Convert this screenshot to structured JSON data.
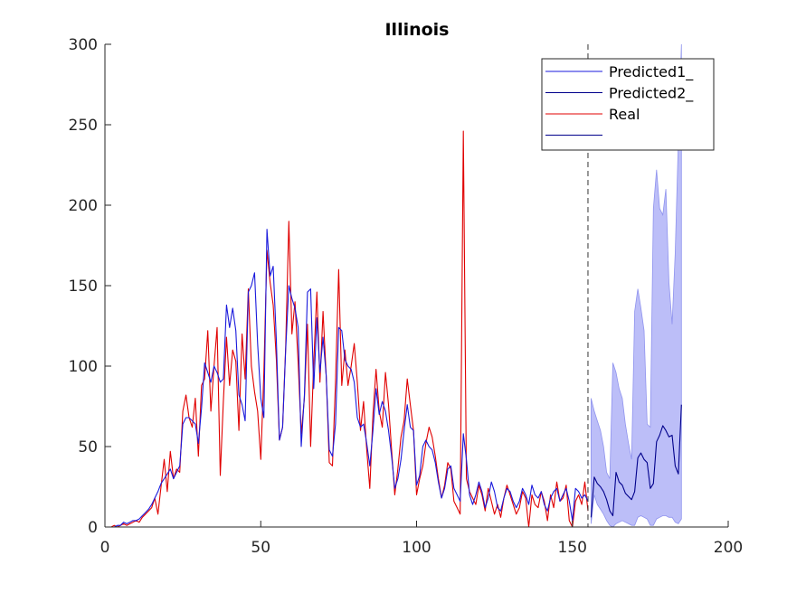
{
  "chart_data": {
    "type": "line",
    "title": "Illinois",
    "xlabel": "",
    "ylabel": "",
    "xlim": [
      0,
      200
    ],
    "ylim": [
      0,
      300
    ],
    "x_ticks": [
      "0",
      "50",
      "100",
      "150",
      "200"
    ],
    "y_ticks": [
      "0",
      "50",
      "100",
      "150",
      "200",
      "250",
      "300"
    ],
    "grid": false,
    "legend_position": "top-right",
    "forecast_start": 155,
    "series": [
      {
        "name": "Real",
        "color": "#e00000",
        "x": [
          1,
          2,
          3,
          4,
          5,
          6,
          7,
          8,
          9,
          10,
          11,
          12,
          13,
          14,
          15,
          16,
          17,
          18,
          19,
          20,
          21,
          22,
          23,
          24,
          25,
          26,
          27,
          28,
          29,
          30,
          31,
          32,
          33,
          34,
          35,
          36,
          37,
          38,
          39,
          40,
          41,
          42,
          43,
          44,
          45,
          46,
          47,
          48,
          49,
          50,
          51,
          52,
          53,
          54,
          55,
          56,
          57,
          58,
          59,
          60,
          61,
          62,
          63,
          64,
          65,
          66,
          67,
          68,
          69,
          70,
          71,
          72,
          73,
          74,
          75,
          76,
          77,
          78,
          79,
          80,
          81,
          82,
          83,
          84,
          85,
          86,
          87,
          88,
          89,
          90,
          91,
          92,
          93,
          94,
          95,
          96,
          97,
          98,
          99,
          100,
          101,
          102,
          103,
          104,
          105,
          106,
          107,
          108,
          109,
          110,
          111,
          112,
          113,
          114,
          115,
          116,
          117,
          118,
          119,
          120,
          121,
          122,
          123,
          124,
          125,
          126,
          127,
          128,
          129,
          130,
          131,
          132,
          133,
          134,
          135,
          136,
          137,
          138,
          139,
          140,
          141,
          142,
          143,
          144,
          145,
          146,
          147,
          148,
          149,
          150,
          151,
          152,
          153,
          154,
          155
        ],
        "values": [
          0,
          0,
          1,
          0,
          1,
          2,
          1,
          2,
          3,
          4,
          3,
          6,
          8,
          10,
          12,
          18,
          8,
          25,
          42,
          22,
          47,
          30,
          36,
          34,
          72,
          82,
          68,
          62,
          80,
          44,
          88,
          92,
          122,
          72,
          100,
          124,
          32,
          78,
          118,
          88,
          110,
          103,
          60,
          120,
          92,
          148,
          100,
          84,
          72,
          42,
          96,
          172,
          152,
          138,
          104,
          54,
          62,
          112,
          190,
          120,
          140,
          102,
          58,
          80,
          126,
          50,
          102,
          146,
          90,
          134,
          94,
          40,
          38,
          90,
          160,
          88,
          110,
          88,
          100,
          114,
          90,
          60,
          78,
          48,
          24,
          70,
          98,
          72,
          62,
          96,
          76,
          48,
          20,
          36,
          56,
          66,
          92,
          76,
          60,
          20,
          30,
          38,
          52,
          62,
          56,
          44,
          30,
          18,
          26,
          40,
          36,
          16,
          12,
          8,
          246,
          30,
          22,
          18,
          14,
          26,
          20,
          10,
          24,
          16,
          8,
          14,
          6,
          18,
          26,
          20,
          14,
          8,
          12,
          22,
          18,
          0,
          20,
          14,
          12,
          22,
          16,
          4,
          20,
          12,
          28,
          16,
          18,
          26,
          4,
          0,
          16,
          20,
          14,
          28,
          10
        ]
      },
      {
        "name": "Predicted1_",
        "color": "#1a1adc",
        "x": [
          1,
          2,
          3,
          4,
          5,
          6,
          7,
          8,
          9,
          10,
          11,
          12,
          13,
          14,
          15,
          16,
          17,
          18,
          19,
          20,
          21,
          22,
          23,
          24,
          25,
          26,
          27,
          28,
          29,
          30,
          31,
          32,
          33,
          34,
          35,
          36,
          37,
          38,
          39,
          40,
          41,
          42,
          43,
          44,
          45,
          46,
          47,
          48,
          49,
          50,
          51,
          52,
          53,
          54,
          55,
          56,
          57,
          58,
          59,
          60,
          61,
          62,
          63,
          64,
          65,
          66,
          67,
          68,
          69,
          70,
          71,
          72,
          73,
          74,
          75,
          76,
          77,
          78,
          79,
          80,
          81,
          82,
          83,
          84,
          85,
          86,
          87,
          88,
          89,
          90,
          91,
          92,
          93,
          94,
          95,
          96,
          97,
          98,
          99,
          100,
          101,
          102,
          103,
          104,
          105,
          106,
          107,
          108,
          109,
          110,
          111,
          112,
          113,
          114,
          115,
          116,
          117,
          118,
          119,
          120,
          121,
          122,
          123,
          124,
          125,
          126,
          127,
          128,
          129,
          130,
          131,
          132,
          133,
          134,
          135,
          136,
          137,
          138,
          139,
          140,
          141,
          142,
          143,
          144,
          145,
          146,
          147,
          148,
          149,
          150,
          151,
          152,
          153,
          154,
          155
        ],
        "values": [
          0,
          0,
          0,
          1,
          1,
          3,
          2,
          3,
          4,
          4,
          5,
          7,
          9,
          11,
          14,
          18,
          22,
          27,
          30,
          33,
          36,
          30,
          34,
          38,
          64,
          68,
          68,
          66,
          64,
          52,
          74,
          102,
          96,
          90,
          100,
          96,
          90,
          92,
          138,
          124,
          136,
          122,
          82,
          76,
          66,
          146,
          150,
          158,
          114,
          80,
          68,
          185,
          156,
          162,
          116,
          54,
          62,
          110,
          150,
          142,
          136,
          124,
          50,
          82,
          146,
          148,
          86,
          130,
          96,
          118,
          94,
          48,
          44,
          64,
          124,
          122,
          104,
          100,
          98,
          90,
          68,
          62,
          64,
          52,
          38,
          60,
          86,
          70,
          78,
          72,
          60,
          44,
          24,
          30,
          42,
          60,
          76,
          62,
          60,
          26,
          32,
          50,
          54,
          50,
          48,
          40,
          28,
          18,
          24,
          36,
          38,
          24,
          20,
          16,
          58,
          42,
          20,
          14,
          20,
          28,
          22,
          12,
          18,
          28,
          22,
          12,
          10,
          18,
          24,
          22,
          16,
          12,
          16,
          24,
          20,
          14,
          26,
          20,
          18,
          22,
          14,
          10,
          18,
          22,
          24,
          16,
          20,
          24,
          16,
          4,
          24,
          22,
          18,
          20,
          16
        ]
      },
      {
        "name": "Predicted2_",
        "color": "#00008b",
        "x": [
          156,
          157,
          158,
          159,
          160,
          161,
          162,
          163,
          164,
          165,
          166,
          167,
          168,
          169,
          170,
          171,
          172,
          173,
          174,
          175,
          176,
          177,
          178,
          179,
          180,
          181,
          182,
          183,
          184,
          185
        ],
        "values": [
          6,
          31,
          27,
          25,
          22,
          17,
          10,
          7,
          34,
          28,
          26,
          21,
          19,
          17,
          22,
          43,
          46,
          42,
          40,
          24,
          27,
          53,
          57,
          63,
          60,
          56,
          57,
          38,
          33,
          76
        ]
      },
      {
        "name": "",
        "color": "#00008b",
        "x": [],
        "values": []
      }
    ],
    "confidence_band": {
      "color": "#b8baf8",
      "x": [
        156,
        157,
        158,
        159,
        160,
        161,
        162,
        163,
        164,
        165,
        166,
        167,
        168,
        169,
        170,
        171,
        172,
        173,
        174,
        175,
        176,
        177,
        178,
        179,
        180,
        181,
        182,
        183,
        184,
        185
      ],
      "upper": [
        80,
        72,
        66,
        60,
        50,
        34,
        30,
        102,
        96,
        86,
        80,
        64,
        52,
        42,
        134,
        148,
        136,
        122,
        64,
        62,
        198,
        222,
        198,
        194,
        210,
        152,
        126,
        170,
        240,
        300
      ],
      "lower": [
        2,
        20,
        14,
        11,
        8,
        4,
        1,
        0,
        2,
        3,
        4,
        3,
        2,
        1,
        1,
        6,
        7,
        6,
        5,
        1,
        1,
        5,
        6,
        7,
        7,
        6,
        6,
        3,
        2,
        5
      ]
    }
  }
}
